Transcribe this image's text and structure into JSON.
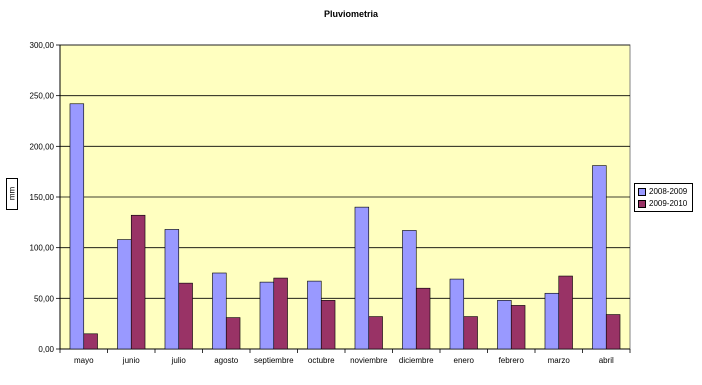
{
  "chart_data": {
    "type": "bar",
    "title": "Pluviometria",
    "xlabel": "",
    "ylabel": "mm",
    "categories": [
      "mayo",
      "junio",
      "julio",
      "agosto",
      "septiembre",
      "octubre",
      "noviembre",
      "diciembre",
      "enero",
      "febrero",
      "marzo",
      "abril"
    ],
    "series": [
      {
        "name": "2008-2009",
        "color": "#9999ff",
        "values": [
          242,
          108,
          118,
          75,
          66,
          67,
          140,
          117,
          69,
          48,
          55,
          181
        ]
      },
      {
        "name": "2009-2010",
        "color": "#993366",
        "values": [
          15,
          132,
          65,
          31,
          70,
          48,
          32,
          60,
          32,
          43,
          72,
          34
        ]
      }
    ],
    "ylim": [
      0,
      300
    ],
    "yticks": [
      "0,00",
      "50,00",
      "100,00",
      "150,00",
      "200,00",
      "250,00",
      "300,00"
    ],
    "grid": true,
    "legend_position": "right",
    "plot_background": "#ffffc0"
  }
}
